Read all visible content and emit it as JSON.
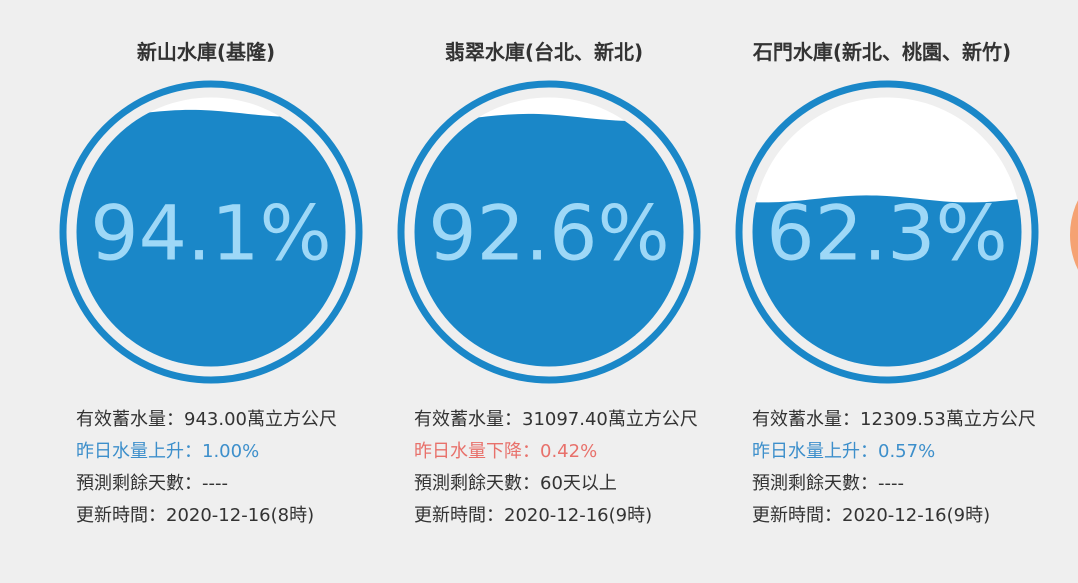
{
  "colors": {
    "ring": "#1a87c8",
    "water": "#1a87c8",
    "empty": "#ffffff",
    "text_on_empty": "#1a87c8",
    "text_on_water": "#9ed8f7",
    "rise": "#3d8fcb",
    "fall": "#e8716b",
    "edge_ring": "#f5a273"
  },
  "reservoirs": [
    {
      "name": "新山水庫(基隆)",
      "percent_label": "94.1%",
      "fill": 0.941,
      "storage": "有效蓄水量：943.00萬立方公尺",
      "change": "昨日水量上升：1.00%",
      "change_dir": "rise",
      "forecast": "預測剩餘天數：----",
      "updated": "更新時間：2020-12-16(8時)"
    },
    {
      "name": "翡翠水庫(台北、新北)",
      "percent_label": "92.6%",
      "fill": 0.926,
      "storage": "有效蓄水量：31097.40萬立方公尺",
      "change": "昨日水量下降：0.42%",
      "change_dir": "fall",
      "forecast": "預測剩餘天數：60天以上",
      "updated": "更新時間：2020-12-16(9時)"
    },
    {
      "name": "石門水庫(新北、桃園、新竹)",
      "percent_label": "62.3%",
      "fill": 0.623,
      "storage": "有效蓄水量：12309.53萬立方公尺",
      "change": "昨日水量上升：0.57%",
      "change_dir": "rise",
      "forecast": "預測剩餘天數：----",
      "updated": "更新時間：2020-12-16(9時)"
    }
  ]
}
